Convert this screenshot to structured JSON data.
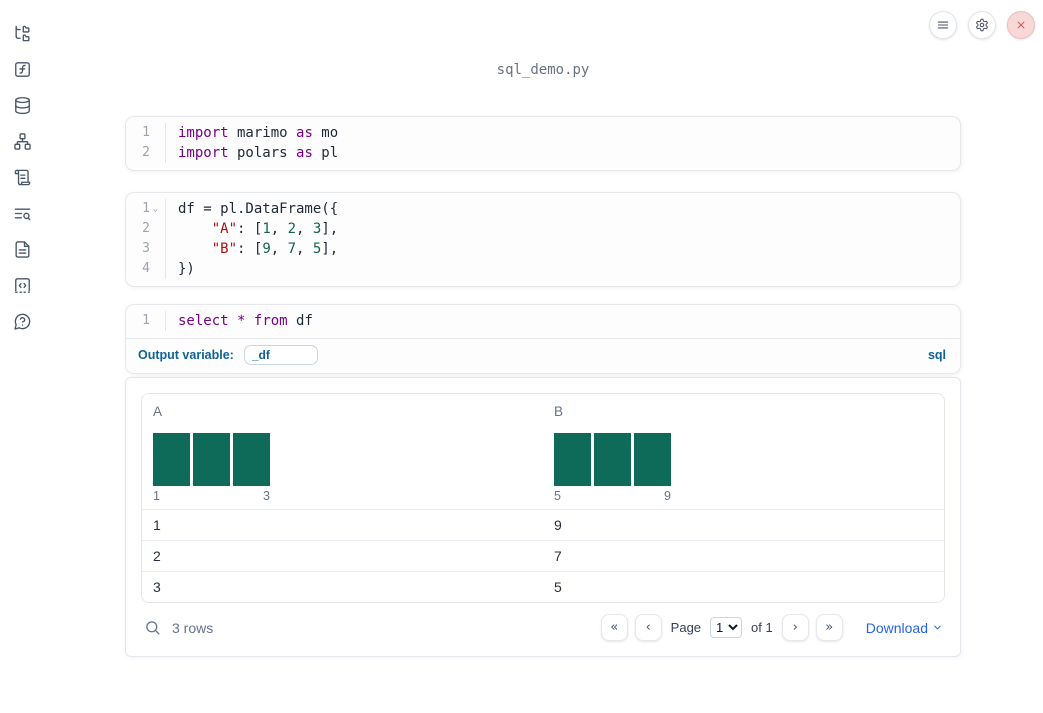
{
  "window": {
    "filename": "sql_demo.py"
  },
  "topbar": {
    "buttons": [
      "menu",
      "settings",
      "close"
    ]
  },
  "sidebar": {
    "icons": [
      "file-explorer",
      "variables",
      "datasources",
      "dependency-graph",
      "scratchpad",
      "table-of-contents",
      "documentation",
      "snippets",
      "help"
    ]
  },
  "cells": [
    {
      "type": "python",
      "lines": [
        {
          "num": "1",
          "tokens": [
            [
              "kw",
              "import"
            ],
            [
              "pl",
              " marimo "
            ],
            [
              "kw",
              "as"
            ],
            [
              "pl",
              " mo"
            ]
          ]
        },
        {
          "num": "2",
          "tokens": [
            [
              "kw",
              "import"
            ],
            [
              "pl",
              " polars "
            ],
            [
              "kw",
              "as"
            ],
            [
              "pl",
              " pl"
            ]
          ]
        }
      ]
    },
    {
      "type": "python",
      "lines": [
        {
          "num": "1",
          "fold": true,
          "tokens": [
            [
              "pl",
              "df = pl.DataFrame({"
            ]
          ]
        },
        {
          "num": "2",
          "tokens": [
            [
              "pl",
              "    "
            ],
            [
              "str",
              "\"A\""
            ],
            [
              "pl",
              ": ["
            ],
            [
              "num",
              "1"
            ],
            [
              "pl",
              ", "
            ],
            [
              "num",
              "2"
            ],
            [
              "pl",
              ", "
            ],
            [
              "num",
              "3"
            ],
            [
              "pl",
              "],"
            ]
          ]
        },
        {
          "num": "3",
          "tokens": [
            [
              "pl",
              "    "
            ],
            [
              "str",
              "\"B\""
            ],
            [
              "pl",
              ": ["
            ],
            [
              "num",
              "9"
            ],
            [
              "pl",
              ", "
            ],
            [
              "num",
              "7"
            ],
            [
              "pl",
              ", "
            ],
            [
              "num",
              "5"
            ],
            [
              "pl",
              "],"
            ]
          ]
        },
        {
          "num": "4",
          "tokens": [
            [
              "pl",
              "})"
            ]
          ]
        }
      ]
    },
    {
      "type": "sql",
      "lines": [
        {
          "num": "1",
          "tokens": [
            [
              "kw",
              "select"
            ],
            [
              "pl",
              " "
            ],
            [
              "kw",
              "*"
            ],
            [
              "pl",
              " "
            ],
            [
              "kw",
              "from"
            ],
            [
              "pl",
              " df"
            ]
          ]
        }
      ],
      "footer": {
        "output_variable_label": "Output variable:",
        "output_variable_value": "_df",
        "language": "sql"
      }
    }
  ],
  "table": {
    "columns": [
      {
        "name": "A",
        "histogram": {
          "type": "bar",
          "values": [
            1,
            1,
            1
          ],
          "min_label": "1",
          "max_label": "3"
        }
      },
      {
        "name": "B",
        "histogram": {
          "type": "bar",
          "values": [
            1,
            1,
            1
          ],
          "min_label": "5",
          "max_label": "9"
        }
      }
    ],
    "rows": [
      [
        "1",
        "9"
      ],
      [
        "2",
        "7"
      ],
      [
        "3",
        "5"
      ]
    ],
    "footer": {
      "row_count": "3 rows",
      "page_label": "Page",
      "page_value": "1",
      "of_label": "of 1",
      "download_label": "Download"
    }
  },
  "colors": {
    "keyword": "#770088",
    "string": "#aa1111",
    "number_literal": "#116644",
    "histogram_bar": "#0e6b59",
    "label_blue": "#0e6396",
    "accent_blue": "#2563eb"
  }
}
